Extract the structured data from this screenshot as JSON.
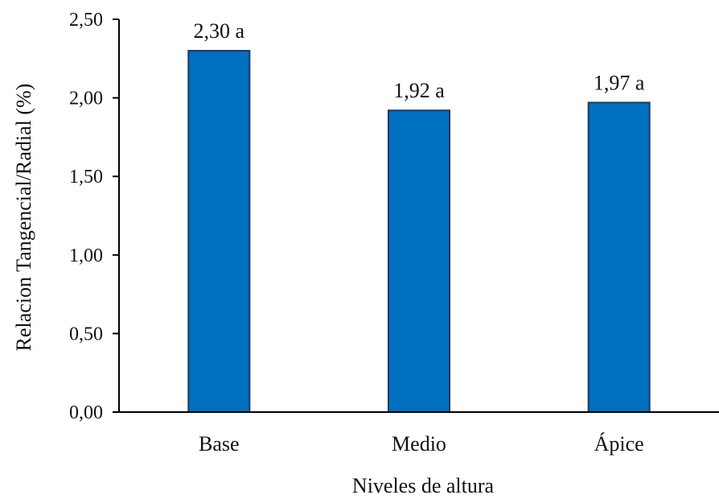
{
  "chart_data": {
    "type": "bar",
    "title": "",
    "xlabel": "Niveles de altura",
    "ylabel": "Relacion Tangencial/Radial (%)",
    "categories": [
      "Base",
      "Medio",
      "Ápice"
    ],
    "values": [
      2.3,
      1.92,
      1.97
    ],
    "data_labels": [
      "2,30 a",
      "1,92 a",
      "1,97 a"
    ],
    "ylim": [
      0,
      2.5
    ],
    "yticks": [
      0.0,
      0.5,
      1.0,
      1.5,
      2.0,
      2.5
    ],
    "ytick_labels": [
      "0,00",
      "0,50",
      "1,00",
      "1,50",
      "2,00",
      "2,50"
    ],
    "grid": false,
    "legend": "none",
    "colors": {
      "bar_fill": "#0070C0",
      "bar_stroke": "#1F3864",
      "axis": "#000000"
    }
  }
}
